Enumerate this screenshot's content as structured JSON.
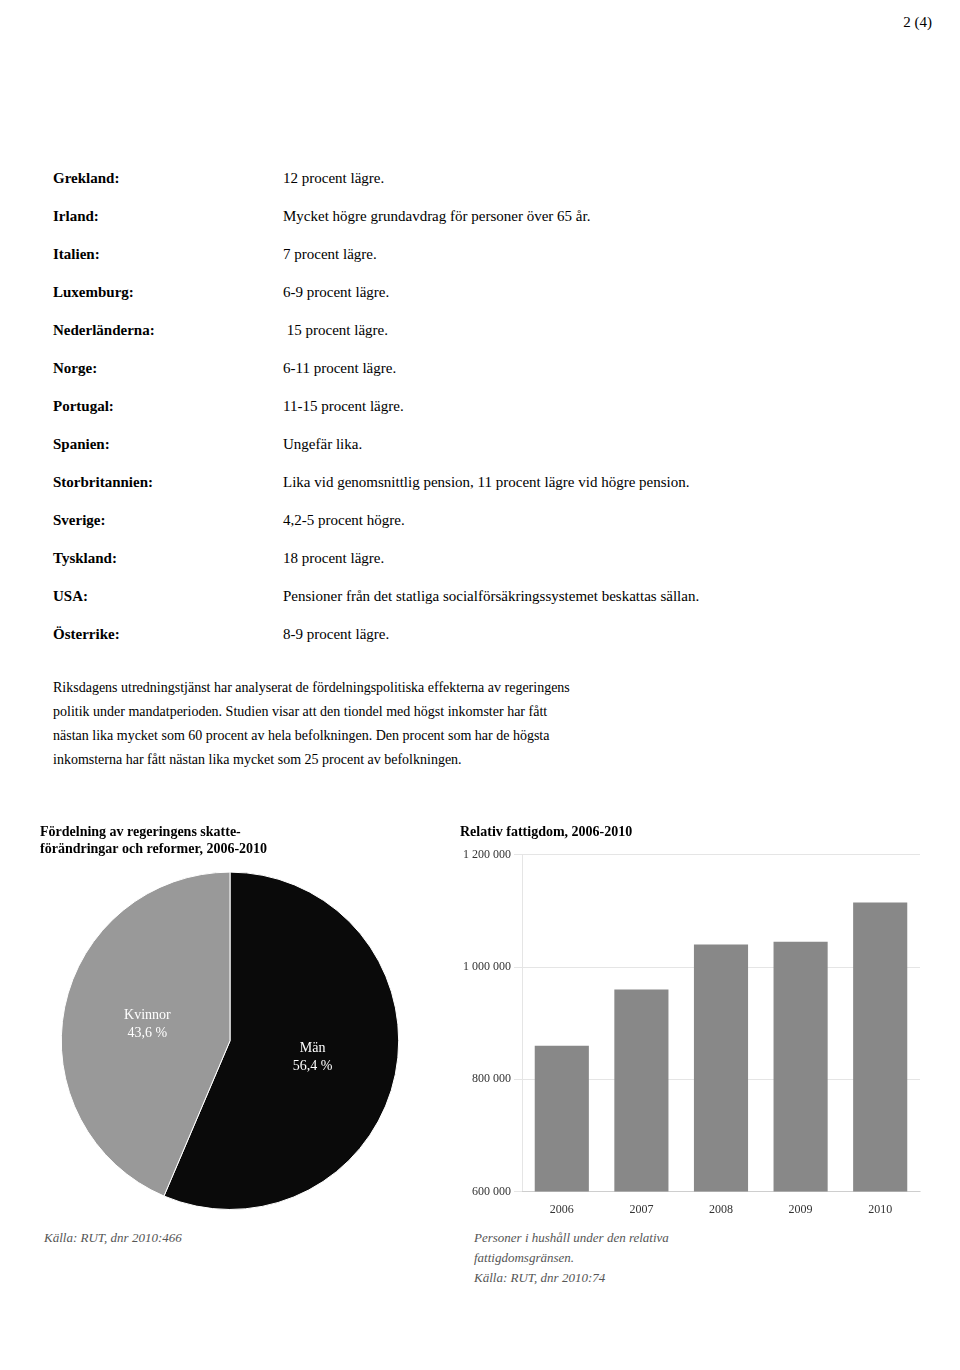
{
  "page_number": "2 (4)",
  "entries": [
    {
      "country": "Grekland:",
      "text": "12 procent lägre."
    },
    {
      "country": "Irland:",
      "text": "Mycket högre grundavdrag för personer över 65 år."
    },
    {
      "country": "Italien:",
      "text": "7 procent lägre."
    },
    {
      "country": "Luxemburg:",
      "text": "6-9 procent lägre."
    },
    {
      "country": "Nederländerna:",
      "text": " 15 procent lägre."
    },
    {
      "country": "Norge:",
      "text": "6-11 procent lägre."
    },
    {
      "country": "Portugal:",
      "text": "11-15 procent lägre."
    },
    {
      "country": "Spanien:",
      "text": "Ungefär lika."
    },
    {
      "country": "Storbritannien:",
      "text": "Lika vid genomsnittlig pension, 11 procent lägre vid högre pension."
    },
    {
      "country": "Sverige:",
      "text": "4,2-5 procent högre."
    },
    {
      "country": "Tyskland:",
      "text": "18 procent lägre."
    },
    {
      "country": "USA:",
      "text": "Pensioner från det statliga socialförsäkringssystemet beskattas sällan."
    },
    {
      "country": "Österrike:",
      "text": "8-9 procent lägre."
    }
  ],
  "paragraph": [
    "Riksdagens utredningstjänst har analyserat de fördelningspolitiska effekterna av regeringens",
    "politik under mandatperioden. Studien visar att den tiondel med högst inkomster har fått",
    "nästan lika mycket som 60 procent av hela befolkningen. Den procent som har de högsta",
    "inkomsterna har fått nästan lika mycket som 25 procent av befolkningen."
  ],
  "chart_data": [
    {
      "type": "pie",
      "title": [
        "Fördelning av regeringens skatte-",
        "förändringar och reformer, 2006-2010"
      ],
      "categories": [
        "Män",
        "Kvinnor"
      ],
      "values": [
        56.4,
        43.6
      ],
      "value_labels": [
        "56,4 %",
        "43,6 %"
      ],
      "colors": [
        "#0a0a0a",
        "#999999"
      ],
      "data_labels": true,
      "annotations": [
        "Källa: RUT, dnr 2010:466"
      ]
    },
    {
      "type": "bar",
      "title": "Relativ fattigdom, 2006-2010",
      "categories": [
        "2006",
        "2007",
        "2008",
        "2009",
        "2010"
      ],
      "values": [
        860000,
        960000,
        1040000,
        1045000,
        1115000
      ],
      "color": "#888888",
      "ylim": [
        600000,
        1200000
      ],
      "yticks": [
        {
          "value": 600000,
          "label": "600 000"
        },
        {
          "value": 800000,
          "label": "800 000"
        },
        {
          "value": 1000000,
          "label": "1 000 000"
        },
        {
          "value": 1200000,
          "label": "1 200 000"
        }
      ],
      "grid": true,
      "annotations": [
        "Personer i hushåll under den relativa",
        "fattigdomsgränsen.",
        "Källa: RUT, dnr 2010:74"
      ]
    }
  ]
}
